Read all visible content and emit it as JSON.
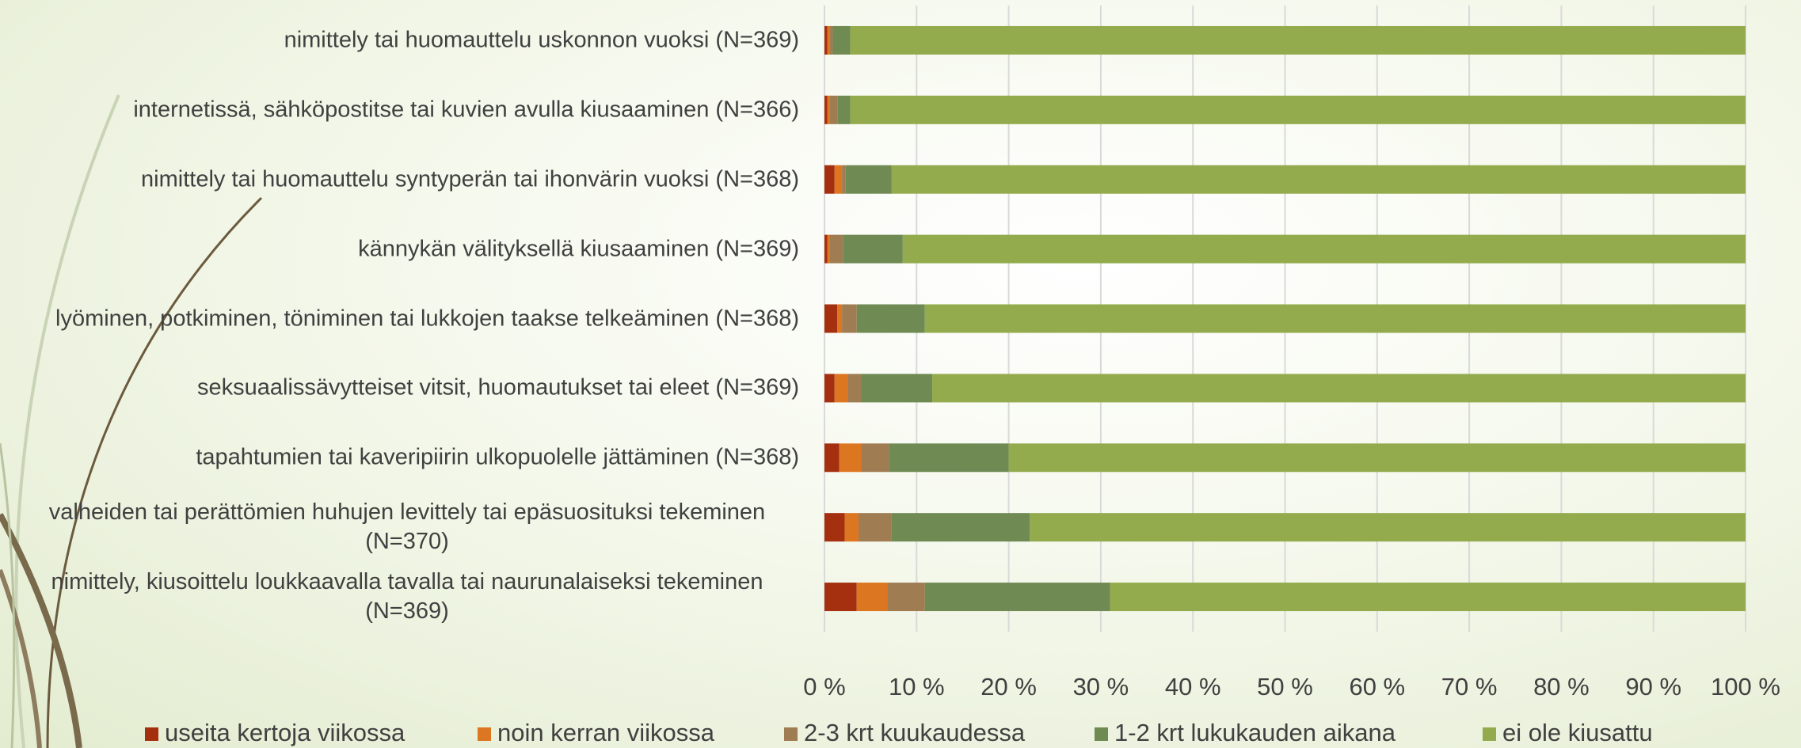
{
  "chart_data": {
    "type": "stacked-bar-horizontal",
    "categories": [
      "nimittely tai huomauttelu uskonnon vuoksi (N=369)",
      "internetissä, sähköpostitse tai kuvien avulla kiusaaminen (N=366)",
      "nimittely tai huomauttelu syntyperän tai ihonvärin vuoksi (N=368)",
      "kännykän välityksellä kiusaaminen (N=369)",
      "lyöminen, potkiminen, töniminen tai lukkojen taakse telkeäminen (N=368)",
      "seksuaalissävytteiset vitsit, huomautukset tai eleet (N=369)",
      "tapahtumien tai kaveripiirin ulkopuolelle jättäminen (N=368)",
      "valheiden tai perättömien huhujen levittely tai epäsuosituksi tekeminen (N=370)",
      "nimittely, kiusoittelu loukkaavalla tavalla tai naurunalaiseksi tekeminen (N=369)"
    ],
    "series": [
      {
        "name": "useita kertoja viikossa",
        "color": "#a5300f",
        "values": [
          0.3,
          0.3,
          1.1,
          0.3,
          1.4,
          1.1,
          1.6,
          2.2,
          3.5
        ]
      },
      {
        "name": "noin kerran viikossa",
        "color": "#dd7620",
        "values": [
          0.3,
          0.3,
          0.8,
          0.3,
          0.5,
          1.4,
          2.4,
          1.5,
          3.3
        ]
      },
      {
        "name": "2-3 krt kuukaudessa",
        "color": "#a07c52",
        "values": [
          0.3,
          0.8,
          0.4,
          1.4,
          1.6,
          1.5,
          3.0,
          3.6,
          4.1
        ]
      },
      {
        "name": "1-2 krt lukukauden aikana",
        "color": "#6f8a53",
        "values": [
          1.9,
          1.4,
          5.0,
          6.5,
          7.4,
          7.7,
          13.0,
          15.0,
          20.1
        ]
      },
      {
        "name": "ei ole kiusattu",
        "color": "#93ab4c",
        "values": [
          97.2,
          97.2,
          92.7,
          91.5,
          89.1,
          88.3,
          80.0,
          77.7,
          69.0
        ]
      }
    ],
    "xlim": [
      0,
      100
    ],
    "xticks": [
      {
        "value": 0,
        "label": "0 %"
      },
      {
        "value": 10,
        "label": "10 %"
      },
      {
        "value": 20,
        "label": "20 %"
      },
      {
        "value": 30,
        "label": "30 %"
      },
      {
        "value": 40,
        "label": "40 %"
      },
      {
        "value": 50,
        "label": "50 %"
      },
      {
        "value": 60,
        "label": "60 %"
      },
      {
        "value": 70,
        "label": "70 %"
      },
      {
        "value": 80,
        "label": "80 %"
      },
      {
        "value": 90,
        "label": "90 %"
      },
      {
        "value": 100,
        "label": "100 %"
      }
    ],
    "grid": true,
    "legend": "bottom"
  }
}
